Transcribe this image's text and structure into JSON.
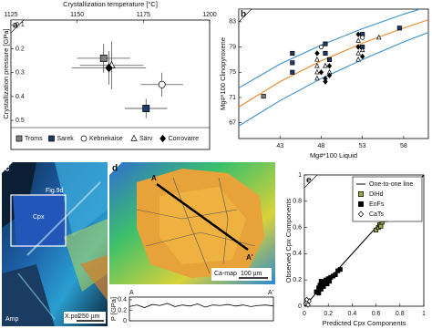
{
  "chart_data": [
    {
      "type": "scatter",
      "panel_label": "a",
      "xlabel": "Crystallization temperature [°C]",
      "x_axis_position": "top",
      "ylabel": "Crystallization pressure [GPa]",
      "y_inverted": true,
      "xlim": [
        1125,
        1200
      ],
      "xticks": [
        1125,
        1150,
        1175,
        1200
      ],
      "ylim": [
        0.08,
        0.53
      ],
      "yticks": [
        0.1,
        0.2,
        0.3,
        0.4,
        0.5
      ],
      "legend": "bottom",
      "series": [
        {
          "name": "Troms",
          "marker": "square",
          "color": "#808080",
          "x": [
            1160
          ],
          "values": [
            0.24
          ],
          "xerr": [
            10
          ],
          "yerr": [
            0.06
          ]
        },
        {
          "name": "Sarek",
          "marker": "square",
          "color": "#1f3b6b",
          "x": [
            1176
          ],
          "values": [
            0.45
          ],
          "xerr": [
            8
          ],
          "yerr": [
            0.04
          ]
        },
        {
          "name": "Kebnekaise",
          "marker": "circle",
          "color": "#ffffff",
          "x": [
            1182
          ],
          "values": [
            0.35
          ],
          "xerr": [
            8
          ],
          "yerr": [
            0.05
          ]
        },
        {
          "name": "Särv",
          "marker": "triangle",
          "color": "#ffffff",
          "x": [
            1163
          ],
          "values": [
            0.27
          ],
          "xerr": [
            12
          ],
          "yerr": [
            0.1
          ]
        },
        {
          "name": "Corrovarre",
          "marker": "diamond",
          "color": "#000000",
          "x": [
            1162
          ],
          "values": [
            0.28
          ],
          "xerr": [
            14
          ],
          "yerr": [
            0.07
          ]
        }
      ]
    },
    {
      "type": "scatter",
      "panel_label": "b",
      "xlabel": "Mg#*100 Liquid",
      "ylabel": "Mg#*100 Clinopyroxene",
      "xlim": [
        38,
        61
      ],
      "xticks": [
        43,
        48,
        53,
        58
      ],
      "ylim": [
        64.5,
        85
      ],
      "yticks": [
        67,
        71,
        75,
        79,
        83
      ],
      "lines": [
        {
          "color": "#3a8fc9",
          "x": [
            38,
            43,
            48,
            53,
            58,
            60
          ],
          "values": [
            72.5,
            76.3,
            79.3,
            81.9,
            84.2,
            85
          ]
        },
        {
          "color": "#e8882a",
          "x": [
            38,
            43,
            48,
            53,
            58,
            61
          ],
          "values": [
            69.5,
            73.5,
            76.8,
            79.6,
            82,
            83.3
          ]
        },
        {
          "color": "#3a8fc9",
          "x": [
            38,
            43,
            48,
            53,
            58,
            61
          ],
          "values": [
            66.5,
            70.5,
            74,
            77,
            79.8,
            81.3
          ]
        }
      ],
      "series": [
        {
          "marker": "square",
          "color": "#808080",
          "x": [
            41
          ],
          "values": [
            71.2
          ]
        },
        {
          "marker": "square",
          "color": "#1f3b6b",
          "x": [
            44.5,
            44.5,
            44.5,
            48.5,
            48.5,
            49,
            53,
            53,
            57.5
          ],
          "values": [
            78,
            76.5,
            75,
            79.5,
            78,
            77,
            81,
            79,
            82
          ]
        },
        {
          "marker": "circle",
          "color": "#ffffff",
          "x": [
            48,
            53
          ],
          "values": [
            79,
            80.5
          ]
        },
        {
          "marker": "triangle",
          "color": "#ffffff",
          "x": [
            47.5,
            47.5,
            47.5,
            47.5,
            48.5,
            49,
            52.5,
            52.5,
            52.5,
            55,
            53
          ],
          "values": [
            77,
            76,
            75,
            74,
            76,
            75,
            80,
            78,
            77,
            80.5,
            78.5
          ]
        },
        {
          "marker": "diamond",
          "color": "#000000",
          "x": [
            47.5,
            48,
            48.5,
            48.5,
            49,
            49,
            52.5,
            52.5,
            53
          ],
          "values": [
            78,
            75,
            74,
            73.5,
            76,
            74.5,
            81,
            79,
            77.5
          ]
        }
      ]
    },
    {
      "type": "line",
      "ylabel": "P [GPa]",
      "x_labels": [
        "A",
        "A'"
      ],
      "color": "#000000",
      "ylim": [
        0,
        0.45
      ],
      "yticks": [
        0,
        0.2,
        0.4
      ],
      "values": [
        0.27,
        0.3,
        0.25,
        0.31,
        0.29,
        0.33,
        0.27,
        0.3,
        0.28,
        0.32,
        0.26,
        0.3,
        0.29,
        0.31,
        0.28,
        0.3,
        0.27,
        0.29,
        0.3,
        0.28
      ]
    },
    {
      "type": "scatter",
      "panel_label": "e",
      "xlabel": "Predicted Cpx Components",
      "ylabel": "Observed Cpx Components",
      "xlim": [
        0,
        1
      ],
      "xticks": [
        0,
        0.2,
        0.4,
        0.6,
        0.8,
        1
      ],
      "ylim": [
        0,
        1
      ],
      "yticks": [
        0,
        0.2,
        0.4,
        0.6,
        0.8,
        1
      ],
      "legend": "upper right",
      "lines": [
        {
          "name": "One-to-one line",
          "color": "#000000",
          "x": [
            0,
            1
          ],
          "values": [
            0,
            1
          ]
        }
      ],
      "series": [
        {
          "name": "DiHd",
          "marker": "square",
          "color": "#9aa64a",
          "x": [
            0.6,
            0.62,
            0.63,
            0.64,
            0.65,
            0.66,
            0.66,
            0.67,
            0.68,
            0.69,
            0.7,
            0.7,
            0.71,
            0.72,
            0.68,
            0.65,
            0.67,
            0.72
          ],
          "values": [
            0.58,
            0.6,
            0.62,
            0.61,
            0.64,
            0.66,
            0.7,
            0.68,
            0.72,
            0.74,
            0.76,
            0.72,
            0.78,
            0.75,
            0.66,
            0.69,
            0.76,
            0.7
          ]
        },
        {
          "name": "EnFs",
          "marker": "square",
          "color": "#000000",
          "x": [
            0.1,
            0.12,
            0.13,
            0.14,
            0.15,
            0.16,
            0.17,
            0.18,
            0.19,
            0.2,
            0.21,
            0.22,
            0.24,
            0.26,
            0.28,
            0.3,
            0.12,
            0.14
          ],
          "values": [
            0.11,
            0.14,
            0.16,
            0.13,
            0.17,
            0.15,
            0.18,
            0.2,
            0.17,
            0.21,
            0.19,
            0.22,
            0.23,
            0.24,
            0.27,
            0.28,
            0.1,
            0.19
          ]
        },
        {
          "name": "CaTs",
          "marker": "diamond",
          "color": "#ffffff",
          "x": [
            0.01,
            0.02,
            0.03,
            0.04,
            0.02
          ],
          "values": [
            0.02,
            0.03,
            0.01,
            0.04,
            0.05
          ]
        }
      ]
    }
  ],
  "images": [
    {
      "panel_label": "c",
      "inset_label": "Fig.9d",
      "mineral_1": "Cpx",
      "mineral_2": "Amp",
      "mode": "X.pol",
      "scale": "250 µm"
    },
    {
      "panel_label": "d",
      "start_label": "A",
      "end_label": "A'",
      "mode": "Ca-map",
      "scale": "100 µm"
    }
  ]
}
